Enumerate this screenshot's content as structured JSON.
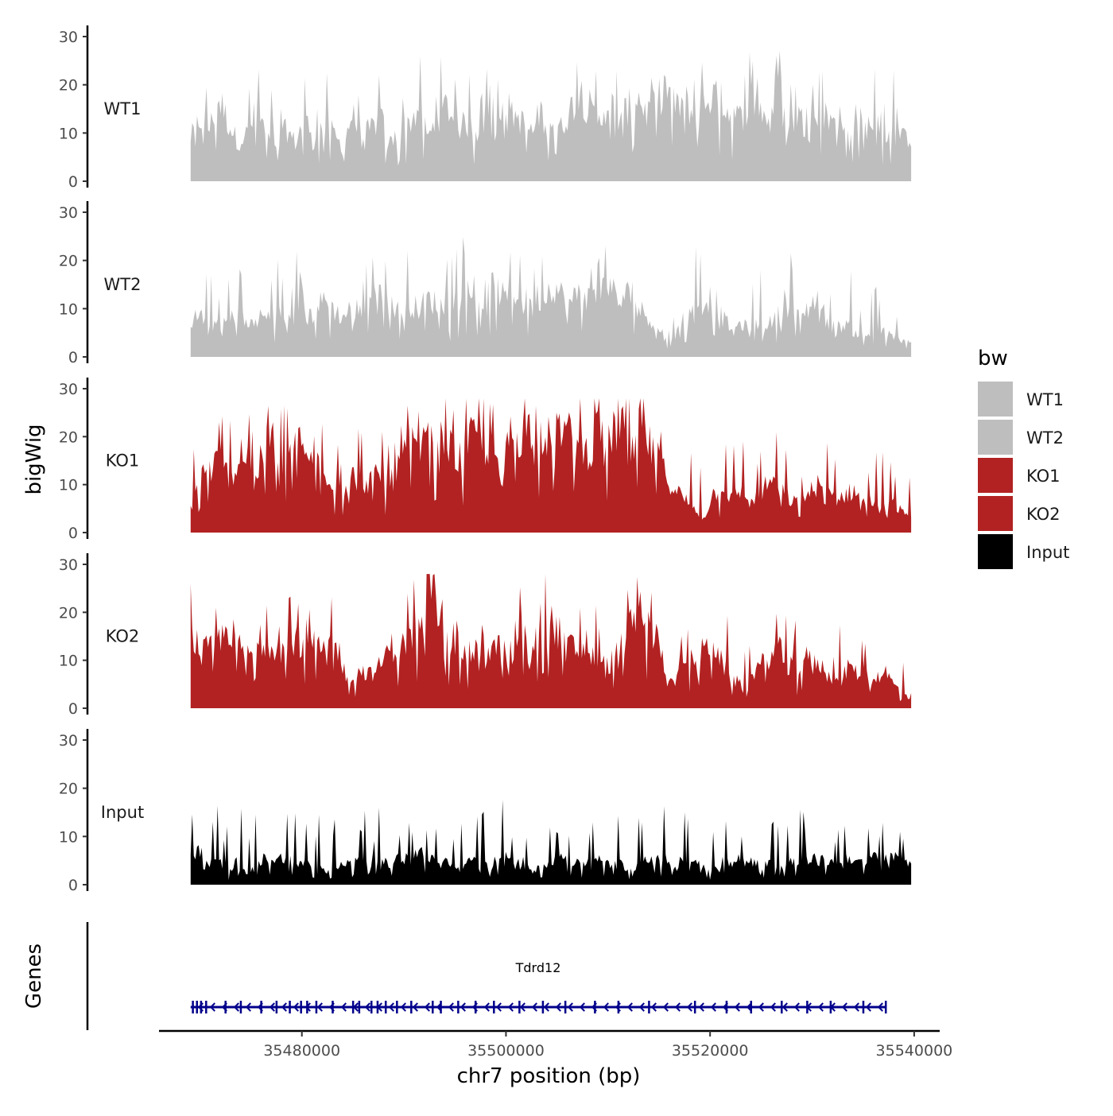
{
  "chart_data": {
    "type": "area",
    "title": "",
    "ylabel": "bigWig",
    "xlabel": "chr7 position (bp)",
    "ylim": [
      0,
      30
    ],
    "y_ticks": [
      0,
      10,
      20,
      30
    ],
    "xlim": [
      35466000,
      35542500
    ],
    "x_ticks": [
      35480000,
      35500000,
      35520000,
      35540000
    ],
    "x_tick_labels": [
      "35480000",
      "35500000",
      "35520000",
      "35540000"
    ],
    "data_range": [
      35469100,
      35539700
    ],
    "legend": {
      "title": "bw",
      "placement": "right",
      "entries": [
        {
          "name": "WT1",
          "color": "#bebebe"
        },
        {
          "name": "WT2",
          "color": "#bebebe"
        },
        {
          "name": "KO1",
          "color": "#b22222"
        },
        {
          "name": "KO2",
          "color": "#b22222"
        },
        {
          "name": "Input",
          "color": "#000000"
        }
      ]
    },
    "series": [
      {
        "name": "WT1",
        "color": "#bebebe",
        "values": [
          9,
          13,
          11,
          17,
          12,
          8,
          10,
          15,
          9,
          6,
          11,
          8,
          13,
          9,
          12,
          10,
          7,
          14,
          9,
          11,
          13,
          8,
          10,
          12,
          15,
          9,
          13,
          16,
          11,
          12,
          10,
          13,
          17,
          11,
          14,
          12,
          10,
          16,
          13,
          11,
          15,
          19,
          14,
          12,
          17,
          13,
          15,
          18,
          14,
          16,
          20,
          15,
          17,
          13,
          16,
          18,
          15,
          14,
          13,
          17,
          15,
          12,
          16,
          11,
          14,
          10,
          13,
          12,
          15,
          9,
          14,
          11,
          13,
          8,
          12,
          9
        ]
      },
      {
        "name": "WT2",
        "color": "#bebebe",
        "values": [
          7,
          9,
          6,
          8,
          7,
          10,
          6,
          9,
          8,
          10,
          7,
          11,
          8,
          9,
          12,
          10,
          8,
          11,
          9,
          13,
          10,
          12,
          9,
          11,
          10,
          12,
          11,
          10,
          12,
          14,
          11,
          13,
          15,
          12,
          14,
          11,
          13,
          12,
          15,
          13,
          11,
          14,
          12,
          13,
          16,
          11,
          13,
          10,
          9,
          6,
          5,
          4,
          9,
          12,
          11,
          13,
          8,
          6,
          7,
          5,
          8,
          7,
          9,
          11,
          8,
          10,
          13,
          7,
          6,
          7,
          5,
          4,
          6,
          5,
          4,
          3
        ]
      },
      {
        "name": "KO1",
        "color": "#b22222",
        "values": [
          5,
          12,
          13,
          15,
          12,
          14,
          16,
          13,
          18,
          14,
          16,
          19,
          15,
          17,
          13,
          11,
          9,
          12,
          10,
          11,
          12,
          10,
          14,
          18,
          17,
          19,
          16,
          18,
          15,
          17,
          20,
          18,
          16,
          19,
          21,
          20,
          23,
          21,
          19,
          22,
          20,
          18,
          17,
          21,
          19,
          22,
          24,
          21,
          19,
          16,
          12,
          9,
          7,
          5,
          3,
          8,
          10,
          7,
          9,
          6,
          8,
          11,
          9,
          7,
          6,
          8,
          10,
          9,
          7,
          8,
          9,
          6,
          7,
          5,
          6,
          4
        ]
      },
      {
        "name": "KO2",
        "color": "#b22222",
        "values": [
          15,
          13,
          12,
          14,
          17,
          13,
          11,
          12,
          14,
          13,
          12,
          15,
          11,
          13,
          12,
          14,
          11,
          6,
          8,
          7,
          9,
          13,
          12,
          15,
          16,
          19,
          18,
          15,
          13,
          11,
          12,
          10,
          13,
          12,
          15,
          17,
          14,
          16,
          18,
          15,
          13,
          12,
          11,
          10,
          9,
          12,
          16,
          18,
          17,
          15,
          8,
          6,
          8,
          11,
          12,
          14,
          9,
          6,
          5,
          7,
          9,
          11,
          12,
          10,
          8,
          11,
          10,
          7,
          6,
          8,
          9,
          7,
          6,
          8,
          5,
          3
        ]
      },
      {
        "name": "Input",
        "color": "#000000",
        "values": [
          5,
          7,
          4,
          6,
          3,
          5,
          2,
          4,
          6,
          5,
          6,
          4,
          5,
          3,
          4,
          3,
          5,
          4,
          6,
          5,
          5,
          4,
          6,
          5,
          7,
          6,
          4,
          5,
          3,
          4,
          6,
          5,
          5,
          6,
          4,
          5,
          3,
          5,
          4,
          6,
          5,
          4,
          5,
          6,
          4,
          5,
          3,
          4,
          6,
          5,
          5,
          4,
          6,
          5,
          4,
          3,
          5,
          4,
          6,
          5,
          4,
          5,
          3,
          5,
          4,
          6,
          5,
          5,
          4,
          6,
          5,
          4,
          6,
          5,
          6,
          5
        ]
      }
    ],
    "genes_panel": {
      "ylabel": "Genes",
      "gene_name": "Tdrd12",
      "strand": "-",
      "start": 35469100,
      "end": 35537300,
      "color": "#00008b",
      "exons": [
        35469300,
        35469700,
        35470100,
        35470600,
        35472500,
        35474000,
        35476000,
        35477500,
        35478800,
        35479900,
        35480500,
        35481400,
        35483000,
        35485000,
        35485600,
        35486800,
        35487400,
        35488200,
        35489300,
        35490700,
        35492800,
        35493600,
        35495300,
        35497000,
        35498800,
        35501300,
        35503600,
        35505800,
        35508700,
        35511000,
        35514000,
        35518500,
        35521600,
        35524000,
        35527000,
        35529500,
        35531800,
        35535000,
        35537200
      ]
    }
  }
}
